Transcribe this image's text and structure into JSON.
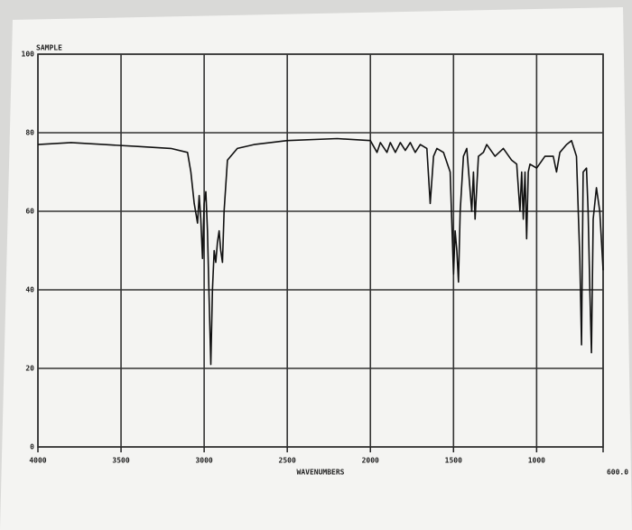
{
  "chart_data": {
    "type": "line",
    "title": "SAMPLE",
    "x_label": "WAVENUMBERS",
    "xlim": [
      4000,
      600
    ],
    "xticks": [
      4000,
      3500,
      3000,
      2500,
      2000,
      1500,
      1000,
      {
        "value": 600,
        "label": "600.0"
      }
    ],
    "ylim": [
      0,
      100
    ],
    "yticks": [
      0,
      20,
      40,
      60,
      80,
      100
    ],
    "grid": true,
    "color": "#111111",
    "series": [
      {
        "name": "SAMPLE",
        "color": "#111111",
        "x": [
          4000,
          3800,
          3600,
          3400,
          3200,
          3100,
          3080,
          3060,
          3040,
          3030,
          3020,
          3010,
          3000,
          2990,
          2980,
          2970,
          2960,
          2950,
          2940,
          2930,
          2920,
          2910,
          2900,
          2890,
          2880,
          2860,
          2800,
          2700,
          2500,
          2200,
          2000,
          1960,
          1940,
          1900,
          1880,
          1850,
          1820,
          1790,
          1760,
          1730,
          1700,
          1660,
          1640,
          1620,
          1600,
          1560,
          1520,
          1500,
          1490,
          1480,
          1470,
          1460,
          1440,
          1420,
          1390,
          1380,
          1370,
          1350,
          1320,
          1300,
          1250,
          1200,
          1150,
          1120,
          1100,
          1090,
          1080,
          1070,
          1060,
          1050,
          1040,
          1000,
          950,
          900,
          880,
          860,
          820,
          790,
          760,
          740,
          730,
          720,
          700,
          690,
          680,
          670,
          660,
          640,
          620,
          600
        ],
        "values": [
          77,
          77.5,
          77,
          76.5,
          76,
          75,
          70,
          62,
          57,
          64,
          58,
          48,
          62,
          65,
          55,
          38,
          21,
          40,
          50,
          47,
          52,
          55,
          50,
          47,
          60,
          73,
          76,
          77,
          78,
          78.5,
          78,
          75,
          77.5,
          75,
          77.5,
          75,
          77.5,
          75.5,
          77.5,
          75,
          77,
          76,
          62,
          74,
          76,
          75,
          70,
          44,
          55,
          50,
          42,
          60,
          74,
          76,
          60,
          70,
          58,
          74,
          75,
          77,
          74,
          76,
          73,
          72,
          60,
          70,
          58,
          70,
          53,
          70,
          72,
          71,
          74,
          74,
          70,
          75,
          77,
          78,
          74,
          48,
          26,
          70,
          71,
          60,
          40,
          24,
          58,
          66,
          60,
          45
        ]
      }
    ]
  }
}
